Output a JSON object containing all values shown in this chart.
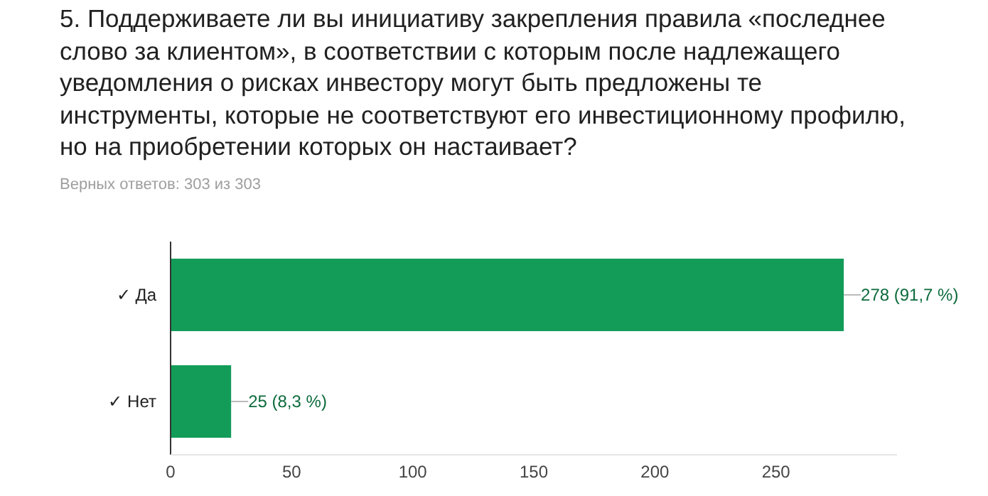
{
  "chart_data": {
    "type": "bar",
    "orientation": "horizontal",
    "title": "5. Поддерживаете ли вы инициативу закрепления правила «последнее слово за клиентом», в соответствии с которым после надлежащего уведомления о рисках инвестору могут быть предложены те инструменты, которые не соответствуют его инвестиционному профилю, но на приобретении которых он настаивает?",
    "subtitle": "Верных ответов: 303 из 303",
    "categories": [
      "✓ Да",
      "✓ Нет"
    ],
    "values": [
      278,
      25
    ],
    "value_labels": [
      "278 (91,7 %)",
      "25 (8,3 %)"
    ],
    "color": "#129c58",
    "xlim": [
      0,
      300
    ],
    "xticks": [
      0,
      50,
      100,
      150,
      200,
      250
    ],
    "grid": false
  }
}
